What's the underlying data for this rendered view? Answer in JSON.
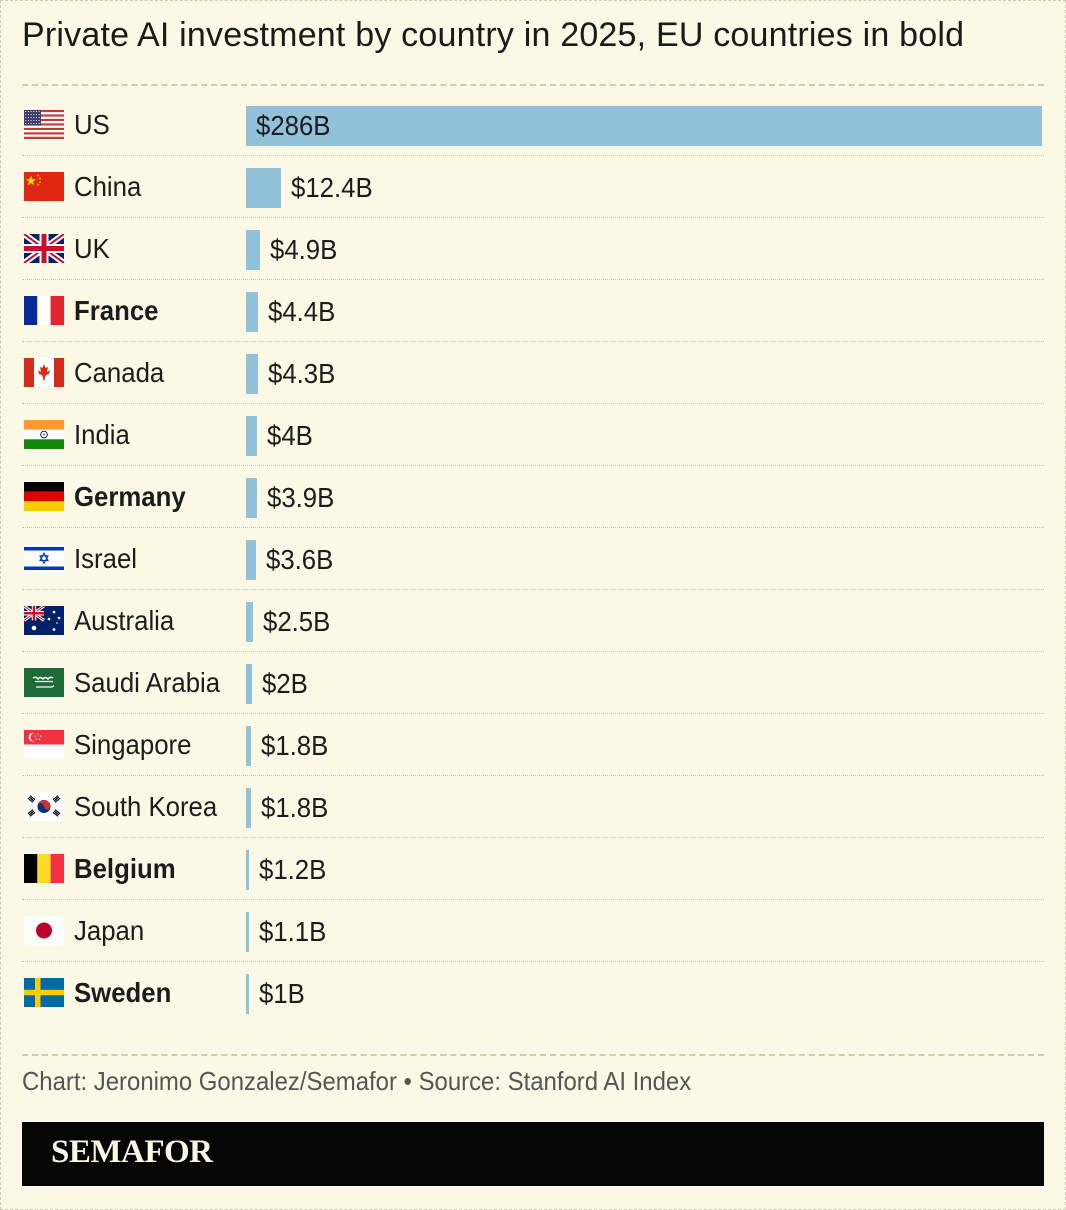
{
  "title": "Private AI investment by country in 2025, EU countries in bold",
  "source": "Chart: Jeronimo Gonzalez/Semafor • Source: Stanford AI Index",
  "brand": "SEMAFOR",
  "colors": {
    "bar": "#92c2d8",
    "background": "#fbf8e5",
    "brand_bar": "#050505"
  },
  "chart_data": {
    "type": "bar",
    "orientation": "horizontal",
    "unit": "billion USD",
    "xlim": [
      0,
      286
    ],
    "grid": false,
    "legend": "none",
    "rows": [
      {
        "country": "US",
        "value": 286,
        "label": "$286B",
        "eu": false,
        "flag": "us-flag-icon"
      },
      {
        "country": "China",
        "value": 12.4,
        "label": "$12.4B",
        "eu": false,
        "flag": "china-flag-icon"
      },
      {
        "country": "UK",
        "value": 4.9,
        "label": "$4.9B",
        "eu": false,
        "flag": "uk-flag-icon"
      },
      {
        "country": "France",
        "value": 4.4,
        "label": "$4.4B",
        "eu": true,
        "flag": "france-flag-icon"
      },
      {
        "country": "Canada",
        "value": 4.3,
        "label": "$4.3B",
        "eu": false,
        "flag": "canada-flag-icon"
      },
      {
        "country": "India",
        "value": 4,
        "label": "$4B",
        "eu": false,
        "flag": "india-flag-icon"
      },
      {
        "country": "Germany",
        "value": 3.9,
        "label": "$3.9B",
        "eu": true,
        "flag": "germany-flag-icon"
      },
      {
        "country": "Israel",
        "value": 3.6,
        "label": "$3.6B",
        "eu": false,
        "flag": "israel-flag-icon"
      },
      {
        "country": "Australia",
        "value": 2.5,
        "label": "$2.5B",
        "eu": false,
        "flag": "australia-flag-icon"
      },
      {
        "country": "Saudi Arabia",
        "value": 2,
        "label": "$2B",
        "eu": false,
        "flag": "saudi-arabia-flag-icon"
      },
      {
        "country": "Singapore",
        "value": 1.8,
        "label": "$1.8B",
        "eu": false,
        "flag": "singapore-flag-icon"
      },
      {
        "country": "South Korea",
        "value": 1.8,
        "label": "$1.8B",
        "eu": false,
        "flag": "south-korea-flag-icon"
      },
      {
        "country": "Belgium",
        "value": 1.2,
        "label": "$1.2B",
        "eu": true,
        "flag": "belgium-flag-icon"
      },
      {
        "country": "Japan",
        "value": 1.1,
        "label": "$1.1B",
        "eu": false,
        "flag": "japan-flag-icon"
      },
      {
        "country": "Sweden",
        "value": 1,
        "label": "$1B",
        "eu": true,
        "flag": "sweden-flag-icon"
      }
    ]
  }
}
